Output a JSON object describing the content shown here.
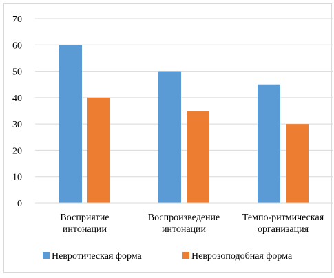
{
  "chart_data": {
    "type": "bar",
    "categories": [
      [
        "Восприятие",
        "интонации"
      ],
      [
        "Воспроизведение",
        "интонации"
      ],
      [
        "Темпо-ритмическая",
        "организация"
      ]
    ],
    "series": [
      {
        "name": "Невротическая форма",
        "values": [
          60,
          50,
          45
        ],
        "color": "#5b9bd5"
      },
      {
        "name": "Неврозоподобная форма",
        "values": [
          40,
          35,
          30
        ],
        "color": "#ed7d31"
      }
    ],
    "ylim": [
      0,
      70
    ],
    "yticks": [
      0,
      10,
      20,
      30,
      40,
      50,
      60,
      70
    ],
    "grid": true,
    "legend_position": "bottom"
  }
}
